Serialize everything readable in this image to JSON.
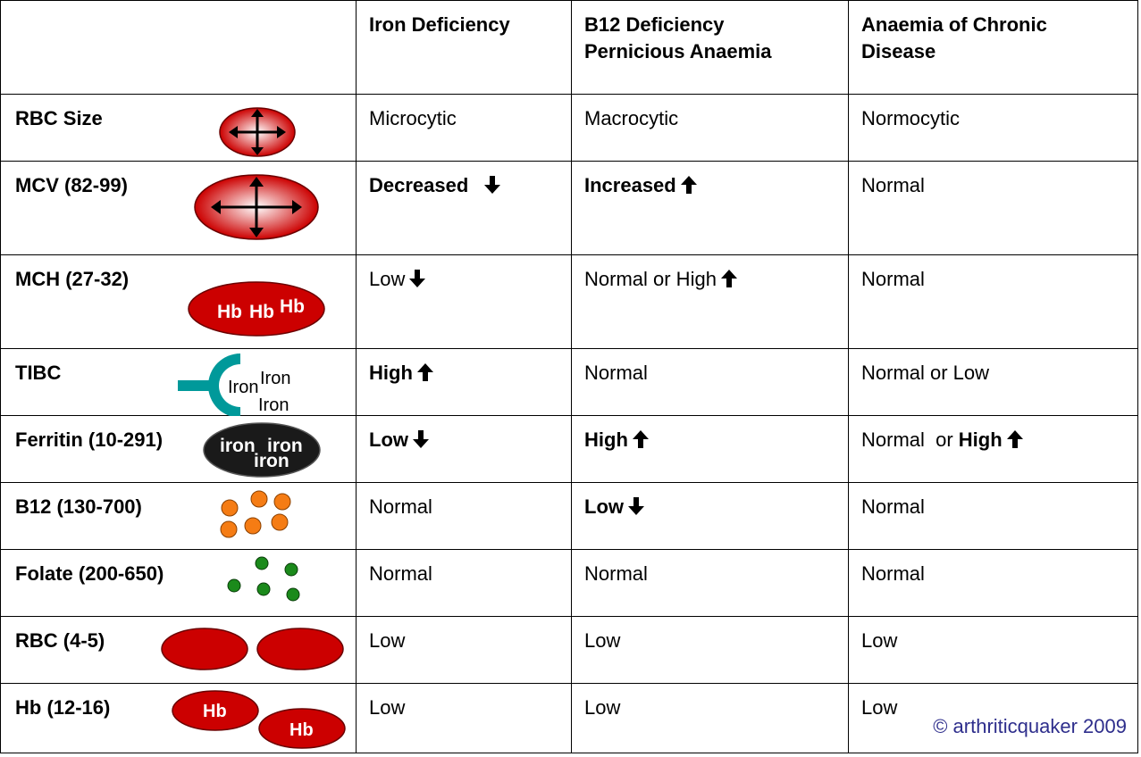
{
  "header": {
    "corner": "",
    "columns": [
      "Iron Deficiency",
      "B12 Deficiency Pernicious Anaemia",
      "Anaemia of Chronic Disease"
    ]
  },
  "rows": [
    {
      "label": "RBC Size",
      "cells": [
        {
          "text": "Microcytic",
          "bold": false,
          "arrow": ""
        },
        {
          "text": "Macrocytic",
          "bold": false,
          "arrow": ""
        },
        {
          "text": "Normocytic",
          "bold": false,
          "arrow": ""
        }
      ]
    },
    {
      "label": "MCV (82-99)",
      "cells": [
        {
          "text": "Decreased",
          "bold": true,
          "arrow": "down"
        },
        {
          "text": "Increased",
          "bold": true,
          "arrow": "up"
        },
        {
          "text": "Normal",
          "bold": false,
          "arrow": ""
        }
      ]
    },
    {
      "label": "MCH (27-32)",
      "cells": [
        {
          "text": "Low",
          "bold": false,
          "arrow": "down"
        },
        {
          "text": "Normal or High",
          "bold": false,
          "arrow": "up"
        },
        {
          "text": "Normal",
          "bold": false,
          "arrow": ""
        }
      ]
    },
    {
      "label": "TIBC",
      "cells": [
        {
          "text": "High",
          "bold": true,
          "arrow": "up"
        },
        {
          "text": "Normal",
          "bold": false,
          "arrow": ""
        },
        {
          "text": "Normal or Low",
          "bold": false,
          "arrow": ""
        }
      ]
    },
    {
      "label": "Ferritin (10-291)",
      "cells": [
        {
          "text": "Low",
          "bold": true,
          "arrow": "down"
        },
        {
          "text": "High",
          "bold": true,
          "arrow": "up"
        },
        {
          "text": "Normal  or ",
          "bold": false,
          "suffix": "High",
          "arrow": "up"
        }
      ]
    },
    {
      "label": "B12 (130-700)",
      "cells": [
        {
          "text": "Normal",
          "bold": false,
          "arrow": ""
        },
        {
          "text": "Low",
          "bold": true,
          "arrow": "down"
        },
        {
          "text": "Normal",
          "bold": false,
          "arrow": ""
        }
      ]
    },
    {
      "label": "Folate (200-650)",
      "cells": [
        {
          "text": "Normal",
          "bold": false,
          "arrow": ""
        },
        {
          "text": "Normal",
          "bold": false,
          "arrow": ""
        },
        {
          "text": "Normal",
          "bold": false,
          "arrow": ""
        }
      ]
    },
    {
      "label": "RBC (4-5)",
      "cells": [
        {
          "text": "Low",
          "bold": false,
          "arrow": ""
        },
        {
          "text": "Low",
          "bold": false,
          "arrow": ""
        },
        {
          "text": "Low",
          "bold": false,
          "arrow": ""
        }
      ]
    },
    {
      "label": "Hb (12-16)",
      "cells": [
        {
          "text": "Low",
          "bold": false,
          "arrow": ""
        },
        {
          "text": "Low",
          "bold": false,
          "arrow": ""
        },
        {
          "text": "Low",
          "bold": false,
          "arrow": ""
        }
      ]
    }
  ],
  "illustrations": {
    "hb_label": "Hb",
    "iron_label": "Iron",
    "ferritin_label": "iron"
  },
  "copyright": "© arthriticquaker 2009",
  "colors": {
    "rbc_red": "#cc0000",
    "transferrin_teal": "#00999a",
    "b12_orange": "#f57c14",
    "folate_green": "#1b8a1b",
    "ferritin_black": "#1a1a1a",
    "copyright_blue": "#2e2e8c"
  }
}
